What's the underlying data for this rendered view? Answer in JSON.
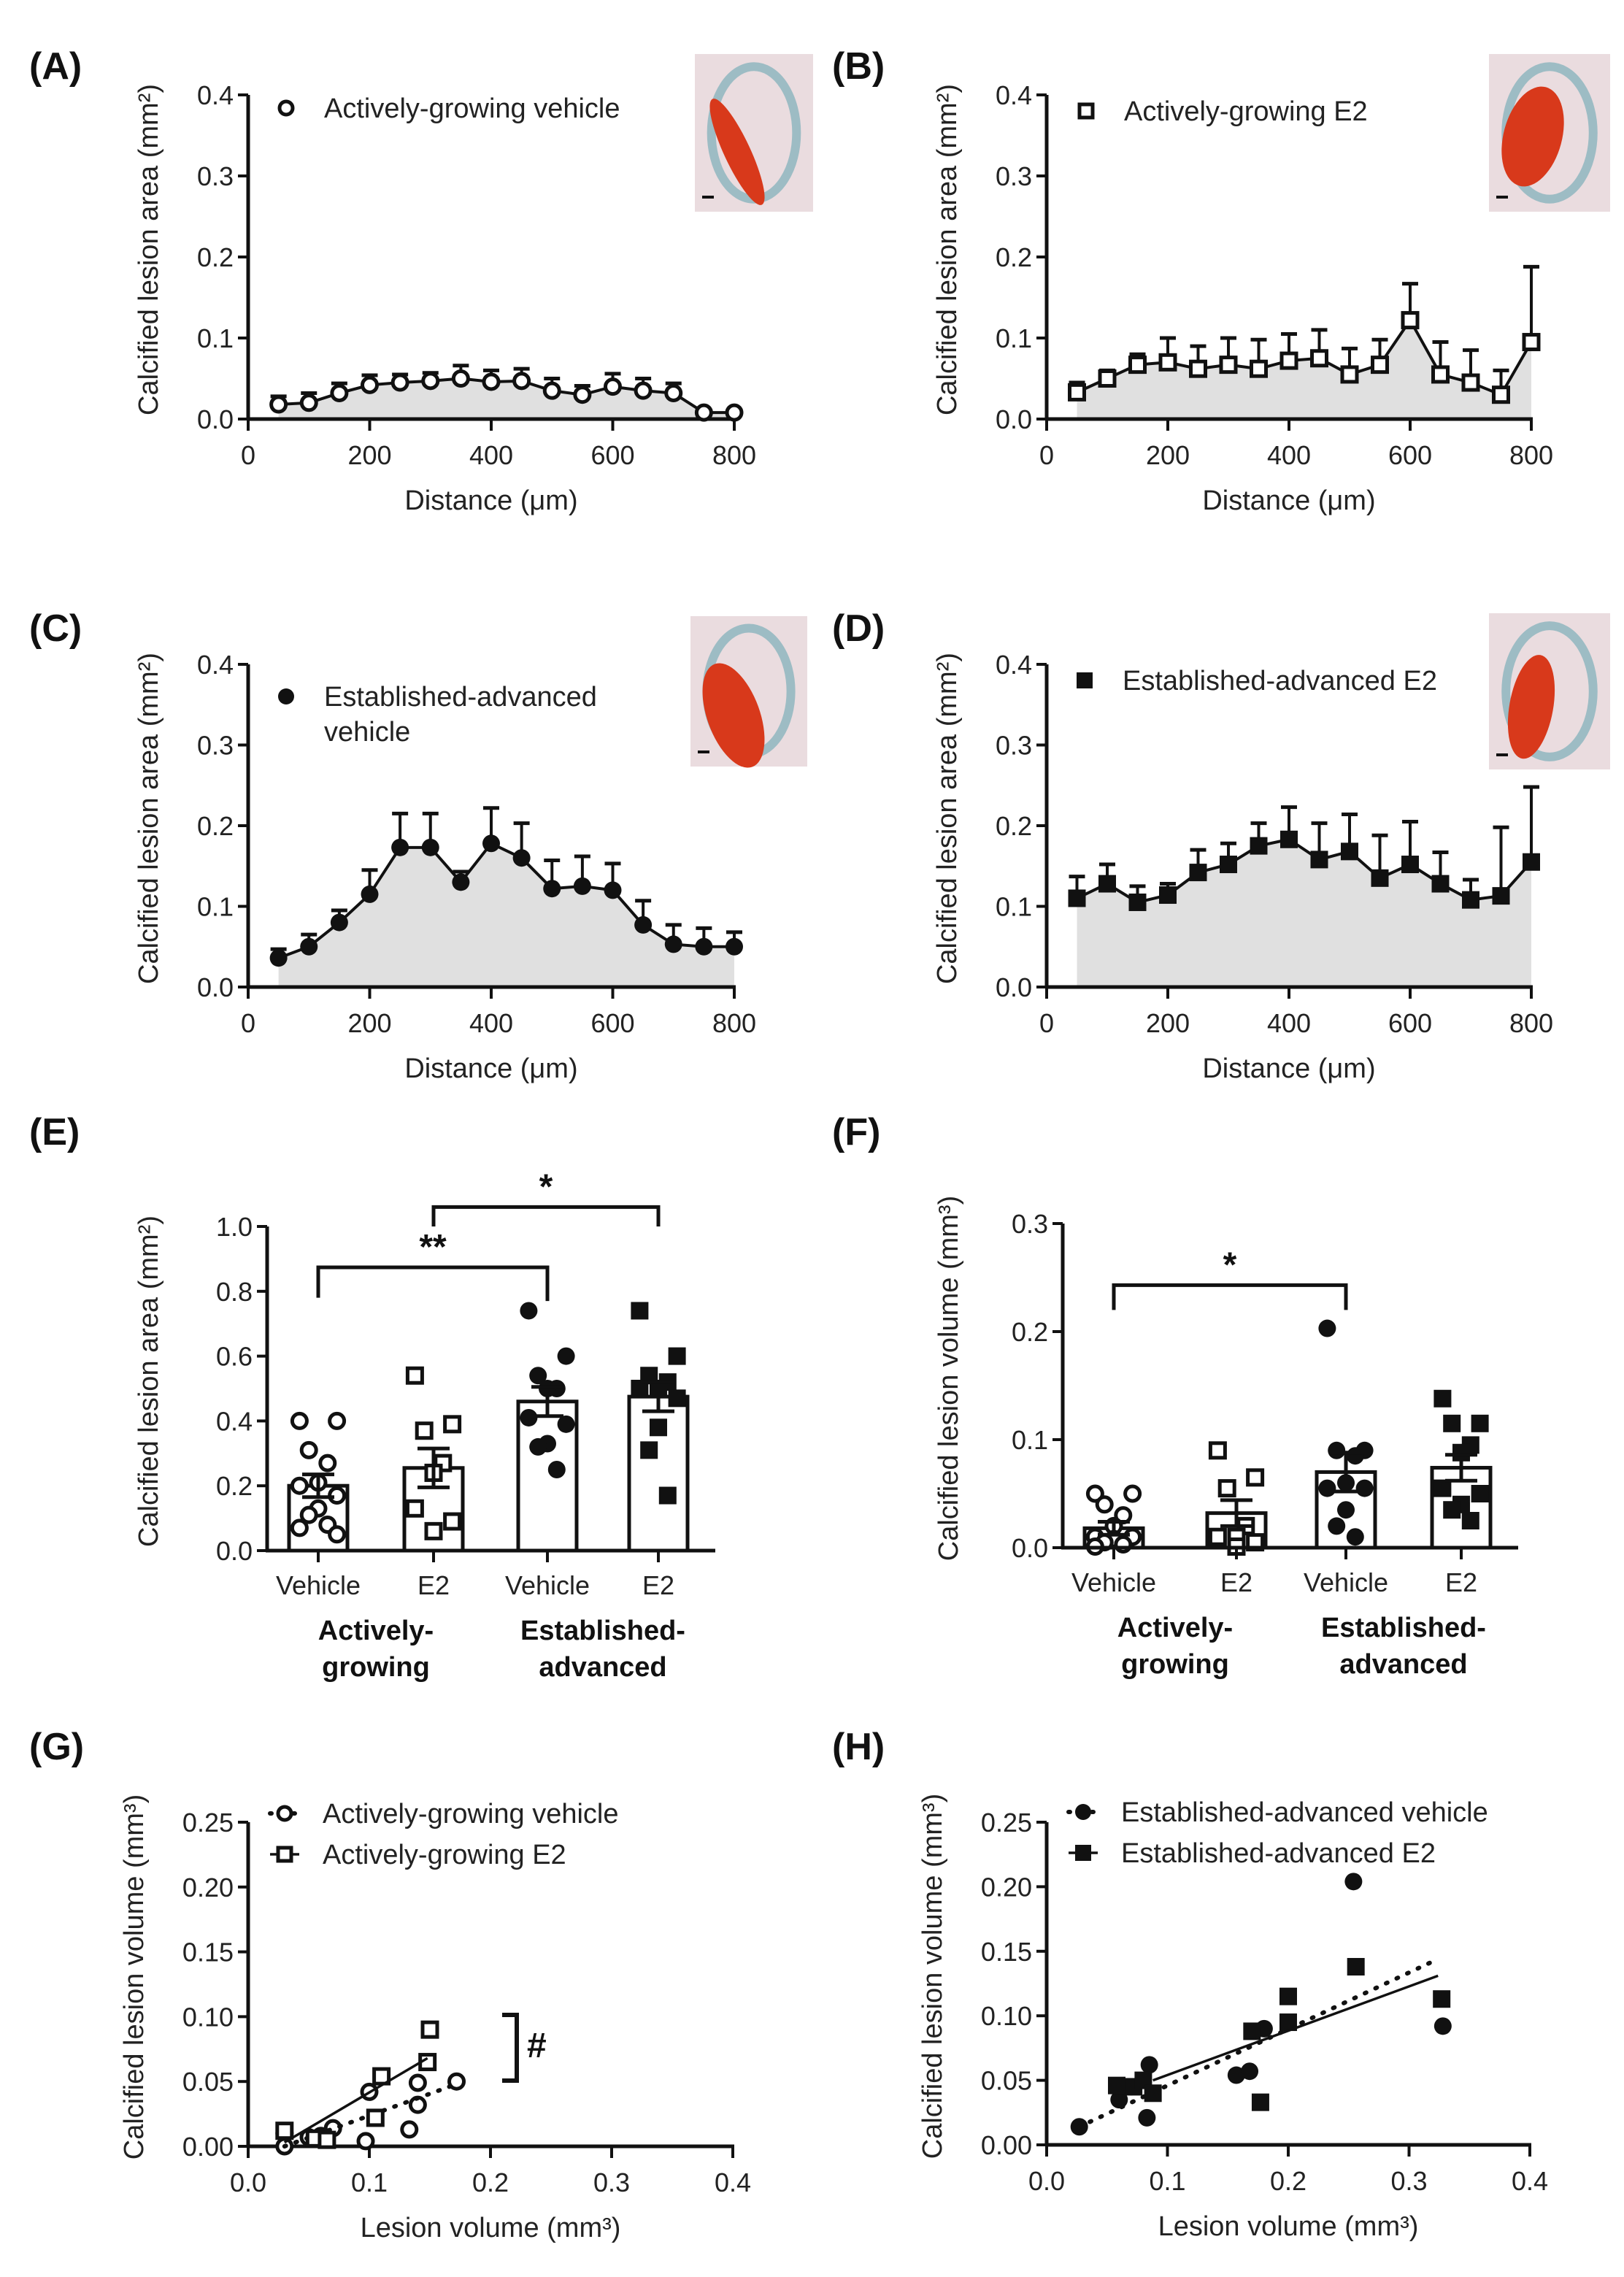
{
  "chart_data": [
    {
      "panel": "(A)",
      "type": "line",
      "legend": [
        "Actively-growing vehicle"
      ],
      "marker": "circle-open",
      "xlabel": "Distance (μm)",
      "ylabel": "Calcified lesion area (mm²)",
      "xlim": [
        0,
        800
      ],
      "ylim": [
        0,
        0.4
      ],
      "xticks": [
        "0",
        "200",
        "400",
        "600",
        "800"
      ],
      "yticks": [
        "0.0",
        "0.1",
        "0.2",
        "0.3",
        "0.4"
      ],
      "x": [
        50,
        100,
        150,
        200,
        250,
        300,
        350,
        400,
        450,
        500,
        550,
        600,
        650,
        700,
        750,
        800
      ],
      "y": [
        0.018,
        0.02,
        0.032,
        0.042,
        0.045,
        0.047,
        0.05,
        0.046,
        0.047,
        0.035,
        0.03,
        0.04,
        0.035,
        0.032,
        0.008,
        0.008
      ],
      "y_upper": [
        0.028,
        0.032,
        0.044,
        0.054,
        0.055,
        0.057,
        0.066,
        0.06,
        0.062,
        0.05,
        0.041,
        0.056,
        0.05,
        0.044,
        0.008,
        0.008
      ]
    },
    {
      "panel": "(B)",
      "type": "line",
      "legend": [
        "Actively-growing E2"
      ],
      "marker": "square-open",
      "xlabel": "Distance (μm)",
      "ylabel": "Calcified lesion area (mm²)",
      "xlim": [
        0,
        800
      ],
      "ylim": [
        0,
        0.4
      ],
      "xticks": [
        "0",
        "200",
        "400",
        "600",
        "800"
      ],
      "yticks": [
        "0.0",
        "0.1",
        "0.2",
        "0.3",
        "0.4"
      ],
      "x": [
        50,
        100,
        150,
        200,
        250,
        300,
        350,
        400,
        450,
        500,
        550,
        600,
        650,
        700,
        750,
        800
      ],
      "y": [
        0.033,
        0.05,
        0.067,
        0.07,
        0.062,
        0.067,
        0.062,
        0.072,
        0.075,
        0.055,
        0.067,
        0.122,
        0.055,
        0.045,
        0.03,
        0.095
      ],
      "y_upper": [
        0.045,
        0.06,
        0.08,
        0.1,
        0.09,
        0.1,
        0.098,
        0.105,
        0.11,
        0.087,
        0.098,
        0.167,
        0.095,
        0.085,
        0.06,
        0.188
      ]
    },
    {
      "panel": "(C)",
      "type": "line",
      "legend": [
        "Established-advanced",
        "vehicle"
      ],
      "marker": "circle-filled",
      "xlabel": "Distance (μm)",
      "ylabel": "Calcified lesion area (mm²)",
      "xlim": [
        0,
        800
      ],
      "ylim": [
        0,
        0.4
      ],
      "xticks": [
        "0",
        "200",
        "400",
        "600",
        "800"
      ],
      "yticks": [
        "0.0",
        "0.1",
        "0.2",
        "0.3",
        "0.4"
      ],
      "x": [
        50,
        100,
        150,
        200,
        250,
        300,
        350,
        400,
        450,
        500,
        550,
        600,
        650,
        700,
        750,
        800
      ],
      "y": [
        0.036,
        0.05,
        0.08,
        0.115,
        0.173,
        0.173,
        0.13,
        0.178,
        0.16,
        0.122,
        0.125,
        0.12,
        0.077,
        0.053,
        0.05,
        0.05
      ],
      "y_upper": [
        0.047,
        0.065,
        0.095,
        0.145,
        0.215,
        0.215,
        0.143,
        0.222,
        0.203,
        0.157,
        0.162,
        0.153,
        0.107,
        0.077,
        0.073,
        0.068
      ]
    },
    {
      "panel": "(D)",
      "type": "line",
      "legend": [
        "Established-advanced E2"
      ],
      "marker": "square-filled",
      "xlabel": "Distance (μm)",
      "ylabel": "Calcified lesion area (mm²)",
      "xlim": [
        0,
        800
      ],
      "ylim": [
        0,
        0.4
      ],
      "xticks": [
        "0",
        "200",
        "400",
        "600",
        "800"
      ],
      "yticks": [
        "0.0",
        "0.1",
        "0.2",
        "0.3",
        "0.4"
      ],
      "x": [
        50,
        100,
        150,
        200,
        250,
        300,
        350,
        400,
        450,
        500,
        550,
        600,
        650,
        700,
        750,
        800
      ],
      "y": [
        0.11,
        0.128,
        0.105,
        0.114,
        0.142,
        0.152,
        0.175,
        0.183,
        0.158,
        0.168,
        0.135,
        0.152,
        0.128,
        0.108,
        0.113,
        0.155
      ],
      "y_upper": [
        0.137,
        0.152,
        0.125,
        0.128,
        0.17,
        0.178,
        0.203,
        0.223,
        0.203,
        0.214,
        0.188,
        0.205,
        0.167,
        0.133,
        0.198,
        0.248
      ]
    },
    {
      "panel": "(E)",
      "type": "bar",
      "ylabel": "Calcified lesion area (mm²)",
      "ylim": [
        0,
        1.0
      ],
      "yticks": [
        "0.0",
        "0.2",
        "0.4",
        "0.6",
        "0.8",
        "1.0"
      ],
      "categories": [
        "Vehicle",
        "E2",
        "Vehicle",
        "E2"
      ],
      "groups": [
        [
          "Actively-",
          "growing"
        ],
        [
          "Established-",
          "advanced"
        ]
      ],
      "markers": [
        "circle-open",
        "square-open",
        "circle-filled",
        "square-filled"
      ],
      "means": [
        0.2,
        0.255,
        0.46,
        0.475
      ],
      "sem": [
        0.035,
        0.06,
        0.045,
        0.045
      ],
      "points": [
        [
          0.4,
          0.4,
          0.31,
          0.27,
          0.21,
          0.2,
          0.17,
          0.13,
          0.11,
          0.08,
          0.07,
          0.05
        ],
        [
          0.54,
          0.39,
          0.37,
          0.27,
          0.24,
          0.13,
          0.09,
          0.06
        ],
        [
          0.74,
          0.6,
          0.54,
          0.5,
          0.5,
          0.41,
          0.39,
          0.33,
          0.32,
          0.25
        ],
        [
          0.74,
          0.6,
          0.54,
          0.52,
          0.5,
          0.5,
          0.47,
          0.38,
          0.31,
          0.17
        ]
      ],
      "significance": [
        {
          "from": 0,
          "to": 2,
          "label": "**"
        },
        {
          "from": 1,
          "to": 3,
          "label": "*"
        }
      ]
    },
    {
      "panel": "(F)",
      "type": "bar",
      "ylabel": "Calcified lesion volume (mm³)",
      "ylim": [
        0,
        0.3
      ],
      "yticks": [
        "0.0",
        "0.1",
        "0.2",
        "0.3"
      ],
      "categories": [
        "Vehicle",
        "E2",
        "Vehicle",
        "E2"
      ],
      "groups": [
        [
          "Actively-",
          "growing"
        ],
        [
          "Established-",
          "advanced"
        ]
      ],
      "markers": [
        "circle-open",
        "square-open",
        "circle-filled",
        "square-filled"
      ],
      "means": [
        0.018,
        0.032,
        0.07,
        0.074
      ],
      "sem": [
        0.006,
        0.012,
        0.018,
        0.012
      ],
      "points": [
        [
          0.05,
          0.05,
          0.04,
          0.03,
          0.02,
          0.01,
          0.01,
          0.008,
          0.005,
          0.003,
          0.001
        ],
        [
          0.09,
          0.065,
          0.055,
          0.02,
          0.01,
          0.01,
          0.005,
          0.001
        ],
        [
          0.203,
          0.09,
          0.09,
          0.085,
          0.06,
          0.055,
          0.055,
          0.035,
          0.02,
          0.01
        ],
        [
          0.138,
          0.115,
          0.115,
          0.095,
          0.088,
          0.055,
          0.05,
          0.04,
          0.035,
          0.025
        ]
      ],
      "significance": [
        {
          "from": 0,
          "to": 2,
          "label": "*"
        }
      ]
    },
    {
      "panel": "(G)",
      "type": "scatter",
      "xlabel": "Lesion volume (mm³)",
      "ylabel": "Calcified lesion volume (mm³)",
      "xlim": [
        0,
        0.4
      ],
      "ylim": [
        0,
        0.25
      ],
      "xticks": [
        "0.0",
        "0.1",
        "0.2",
        "0.3",
        "0.4"
      ],
      "yticks": [
        "0.00",
        "0.05",
        "0.10",
        "0.15",
        "0.20",
        "0.25"
      ],
      "annotation": "#",
      "series": [
        {
          "name": "Actively-growing vehicle",
          "marker": "circle-open",
          "fit_style": "dotted",
          "points": [
            [
              0.03,
              0.01
            ],
            [
              0.03,
              0.0
            ],
            [
              0.05,
              0.007
            ],
            [
              0.06,
              0.008
            ],
            [
              0.07,
              0.014
            ],
            [
              0.097,
              0.004
            ],
            [
              0.1,
              0.042
            ],
            [
              0.133,
              0.013
            ],
            [
              0.14,
              0.032
            ],
            [
              0.14,
              0.049
            ],
            [
              0.172,
              0.05
            ]
          ],
          "fit": [
            [
              0.03,
              0.0
            ],
            [
              0.172,
              0.048
            ]
          ]
        },
        {
          "name": "Actively-growing E2",
          "marker": "square-open",
          "fit_style": "solid",
          "points": [
            [
              0.03,
              0.012
            ],
            [
              0.055,
              0.006
            ],
            [
              0.065,
              0.005
            ],
            [
              0.105,
              0.022
            ],
            [
              0.11,
              0.054
            ],
            [
              0.148,
              0.065
            ],
            [
              0.15,
              0.09
            ]
          ],
          "fit": [
            [
              0.03,
              0.003
            ],
            [
              0.148,
              0.068
            ]
          ]
        }
      ]
    },
    {
      "panel": "(H)",
      "type": "scatter",
      "xlabel": "Lesion volume (mm³)",
      "ylabel": "Calcified lesion volume (mm³)",
      "xlim": [
        0,
        0.4
      ],
      "ylim": [
        0,
        0.25
      ],
      "xticks": [
        "0.0",
        "0.1",
        "0.2",
        "0.3",
        "0.4"
      ],
      "yticks": [
        "0.00",
        "0.05",
        "0.10",
        "0.15",
        "0.20",
        "0.25"
      ],
      "series": [
        {
          "name": "Established-advanced vehicle",
          "marker": "circle-filled",
          "fit_style": "dotted",
          "points": [
            [
              0.027,
              0.014
            ],
            [
              0.06,
              0.035
            ],
            [
              0.07,
              0.045
            ],
            [
              0.083,
              0.021
            ],
            [
              0.085,
              0.062
            ],
            [
              0.157,
              0.054
            ],
            [
              0.168,
              0.057
            ],
            [
              0.18,
              0.09
            ],
            [
              0.254,
              0.204
            ],
            [
              0.328,
              0.092
            ]
          ],
          "fit": [
            [
              0.027,
              0.014
            ],
            [
              0.324,
              0.144
            ]
          ]
        },
        {
          "name": "Established-advanced E2",
          "marker": "square-filled",
          "fit_style": "solid",
          "points": [
            [
              0.058,
              0.046
            ],
            [
              0.072,
              0.045
            ],
            [
              0.08,
              0.05
            ],
            [
              0.088,
              0.04
            ],
            [
              0.17,
              0.088
            ],
            [
              0.177,
              0.033
            ],
            [
              0.2,
              0.095
            ],
            [
              0.2,
              0.115
            ],
            [
              0.256,
              0.138
            ],
            [
              0.327,
              0.113
            ]
          ],
          "fit": [
            [
              0.088,
              0.05
            ],
            [
              0.324,
              0.131
            ]
          ]
        }
      ]
    }
  ]
}
